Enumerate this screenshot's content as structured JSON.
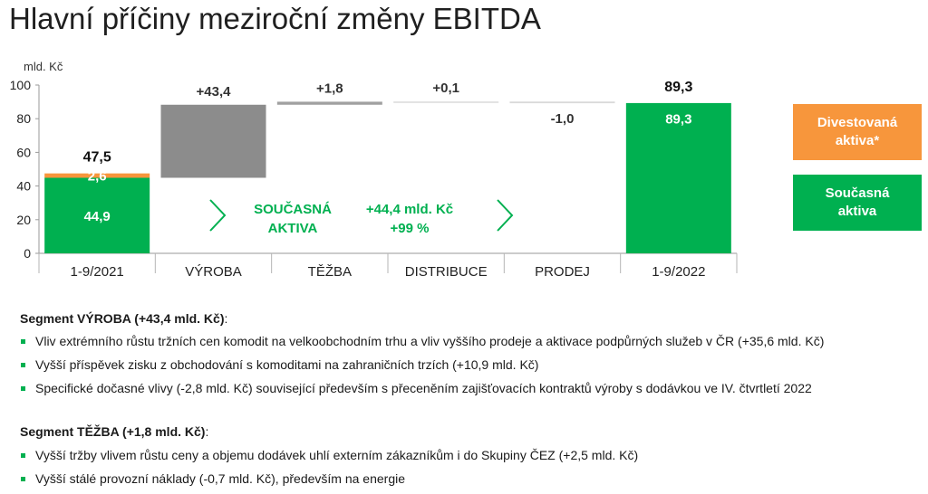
{
  "title": "Hlavní příčiny meziroční změny EBITDA",
  "colors": {
    "green": "#00b050",
    "orange": "#f7963c",
    "gray_dark": "#8c8c8c",
    "gray_mid": "#a0a0a0",
    "gray_light": "#d9d9d9"
  },
  "chart_data": {
    "type": "bar",
    "subtype": "waterfall",
    "unit_label": "mld. Kč",
    "ylim": [
      0,
      100
    ],
    "yticks": [
      0,
      20,
      40,
      60,
      80,
      100
    ],
    "grid": false,
    "categories": [
      "1-9/2021",
      "VÝROBA",
      "TĚŽBA",
      "DISTRIBUCE",
      "PRODEJ",
      "1-9/2022"
    ],
    "bars": [
      {
        "category": "1-9/2021",
        "kind": "total",
        "segments": [
          {
            "series": "Současná aktiva",
            "value": 44.9,
            "label": "44,9"
          },
          {
            "series": "Divestovaná aktiva*",
            "value": 2.6,
            "label": "2,6"
          }
        ],
        "total_label": "47,5"
      },
      {
        "category": "VÝROBA",
        "kind": "delta",
        "start": 44.9,
        "value": 43.4,
        "label": "+43,4"
      },
      {
        "category": "TĚŽBA",
        "kind": "delta",
        "start": 88.3,
        "value": 1.8,
        "label": "+1,8"
      },
      {
        "category": "DISTRIBUCE",
        "kind": "delta",
        "start": 90.1,
        "value": 0.1,
        "label": "+0,1"
      },
      {
        "category": "PRODEJ",
        "kind": "delta",
        "start": 90.2,
        "value": -1.0,
        "label": "-1,0"
      },
      {
        "category": "1-9/2022",
        "kind": "total",
        "segments": [
          {
            "series": "Současná aktiva",
            "value": 89.3,
            "label": "89,3"
          }
        ],
        "total_label": "89,3"
      }
    ],
    "annotation": {
      "line1_left": "SOUČASNÁ",
      "line2_left": "AKTIVA",
      "line1_right": "+44,4 mld. Kč",
      "line2_right": "+99 %"
    }
  },
  "legend": [
    {
      "line1": "Divestovaná",
      "line2": "aktiva*",
      "color": "#f7963c"
    },
    {
      "line1": "Současná",
      "line2": "aktiva",
      "color": "#00b050"
    }
  ],
  "sections": [
    {
      "head": "Segment VÝROBA (+43,4 mld. Kč)",
      "colon": ":",
      "items": [
        "Vliv extrémního růstu tržních cen komodit na velkoobchodním trhu a vliv vyššího prodeje a aktivace podpůrných služeb v ČR (+35,6 mld. Kč)",
        "Vyšší příspěvek zisku z obchodování s komoditami na zahraničních trzích (+10,9 mld. Kč)",
        "Specifické dočasné vlivy (-2,8 mld. Kč) související především s přeceněním zajišťovacích kontraktů výroby s dodávkou ve IV. čtvrtletí 2022"
      ]
    },
    {
      "head": "Segment TĚŽBA (+1,8 mld. Kč)",
      "colon": ":",
      "items": [
        "Vyšší tržby vlivem růstu ceny a objemu dodávek uhlí externím zákazníkům i do Skupiny ČEZ (+2,5 mld. Kč)",
        "Vyšší stálé provozní náklady (-0,7 mld. Kč), především na energie"
      ]
    }
  ]
}
